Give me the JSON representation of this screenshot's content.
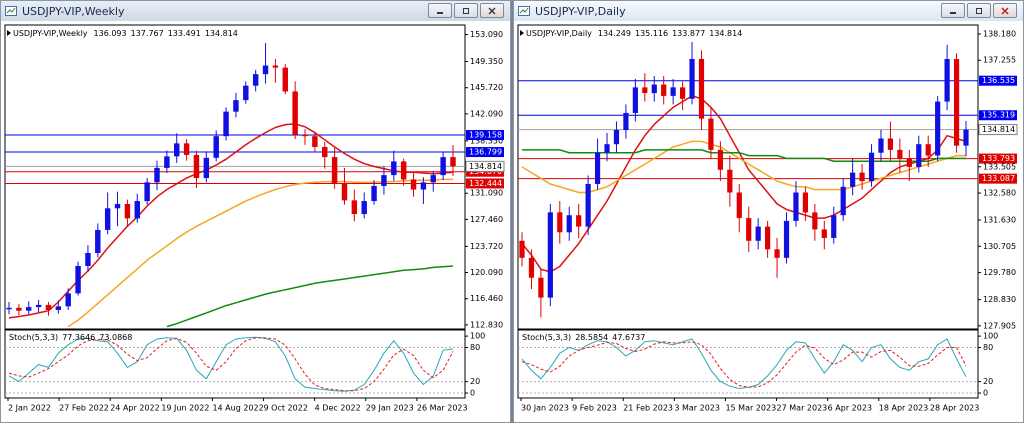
{
  "chart_data": [
    {
      "type": "candlestick",
      "title": "USDJPY-VIP,Weekly",
      "up_color": "#1010e0",
      "down_color": "#e00000",
      "open": [
        115.0,
        115.2,
        114.8,
        115.3,
        115.6,
        114.9,
        115.4,
        117.2,
        121.0,
        122.8,
        126.0,
        129.0,
        129.6,
        127.6,
        130.0,
        132.6,
        134.6,
        136.2,
        138.0,
        136.4,
        133.2,
        136.0,
        139.0,
        142.4,
        144.0,
        146.0,
        147.6,
        148.8,
        148.5,
        145.2,
        139.2,
        139.0,
        137.5,
        136.1,
        132.5,
        130.1,
        128.2,
        130.0,
        132.1,
        133.6,
        135.5,
        133.0,
        131.6,
        132.6,
        133.6,
        136.093
      ],
      "high": [
        116.0,
        115.7,
        116.1,
        116.3,
        116.0,
        116.2,
        117.9,
        121.6,
        123.9,
        126.9,
        131.2,
        131.3,
        130.2,
        131.0,
        133.2,
        135.6,
        137.0,
        139.4,
        138.6,
        137.0,
        136.9,
        139.8,
        143.0,
        145.0,
        146.6,
        148.2,
        151.9,
        149.7,
        149.0,
        146.6,
        140.0,
        139.6,
        138.2,
        137.4,
        134.6,
        131.6,
        131.2,
        132.9,
        134.8,
        137.0,
        135.9,
        134.0,
        133.3,
        134.2,
        136.9,
        137.767
      ],
      "low": [
        114.3,
        114.2,
        114.3,
        114.6,
        114.1,
        114.4,
        114.9,
        116.9,
        120.2,
        122.2,
        125.4,
        126.5,
        126.4,
        127.0,
        129.5,
        131.5,
        133.9,
        135.3,
        135.6,
        131.8,
        132.6,
        135.5,
        138.4,
        141.6,
        143.5,
        145.2,
        146.3,
        146.4,
        144.8,
        138.6,
        137.8,
        136.9,
        134.5,
        131.7,
        129.5,
        127.2,
        127.6,
        129.5,
        130.9,
        132.8,
        132.1,
        130.6,
        129.6,
        131.3,
        132.9,
        133.491
      ],
      "close": [
        115.2,
        114.8,
        115.3,
        115.6,
        114.9,
        115.4,
        117.2,
        121.0,
        122.8,
        126.0,
        129.0,
        129.6,
        127.6,
        130.0,
        132.6,
        134.6,
        136.2,
        138.0,
        136.4,
        133.2,
        136.0,
        139.0,
        142.4,
        144.0,
        146.0,
        147.6,
        148.8,
        148.5,
        145.2,
        139.2,
        139.0,
        137.5,
        136.1,
        132.5,
        130.1,
        128.2,
        130.0,
        132.1,
        133.6,
        135.5,
        133.0,
        131.6,
        132.6,
        133.6,
        136.093,
        134.814
      ],
      "moving_averages": [
        {
          "color": "#e01010",
          "values": [
            113.8,
            114.0,
            114.2,
            114.5,
            114.8,
            116.0,
            117.5,
            119.0,
            120.3,
            121.8,
            123.5,
            125.0,
            126.5,
            127.8,
            129.3,
            130.6,
            131.6,
            132.4,
            133.2,
            133.8,
            134.3,
            135.0,
            135.8,
            136.8,
            137.8,
            138.7,
            139.5,
            140.2,
            140.6,
            140.7,
            140.3,
            139.5,
            138.5,
            137.5,
            136.6,
            135.8,
            135.2,
            134.8,
            134.5,
            134.2,
            134.0,
            134.0,
            133.9,
            133.8,
            133.9,
            134.0
          ]
        },
        {
          "color": "#f5a623",
          "values": [
            null,
            null,
            null,
            null,
            null,
            null,
            112.6,
            113.5,
            114.6,
            115.8,
            117.0,
            118.2,
            119.4,
            120.6,
            121.8,
            122.8,
            123.8,
            124.8,
            125.7,
            126.5,
            127.2,
            127.9,
            128.6,
            129.3,
            130.0,
            130.6,
            131.1,
            131.6,
            132.0,
            132.3,
            132.5,
            132.6,
            132.7,
            132.7,
            132.7,
            132.6,
            132.6,
            132.6,
            132.7,
            132.7,
            132.8,
            132.9,
            132.9,
            132.9,
            133.0,
            133.0
          ]
        },
        {
          "color": "#128a12",
          "values": [
            null,
            null,
            null,
            null,
            null,
            null,
            null,
            null,
            null,
            null,
            null,
            null,
            null,
            null,
            null,
            null,
            112.6,
            113.0,
            113.5,
            114.0,
            114.5,
            115.0,
            115.5,
            115.9,
            116.3,
            116.7,
            117.1,
            117.4,
            117.7,
            118.0,
            118.3,
            118.6,
            118.8,
            119.0,
            119.2,
            119.4,
            119.6,
            119.8,
            120.0,
            120.2,
            120.4,
            120.5,
            120.6,
            120.8,
            120.9,
            121.0
          ]
        }
      ],
      "ylim": [
        112.4,
        154.0
      ],
      "yticks": [
        {
          "value": 153.09,
          "label": "153.090"
        },
        {
          "value": 149.35,
          "label": "149.350"
        },
        {
          "value": 145.72,
          "label": "145.720"
        },
        {
          "value": 142.09,
          "label": "142.090"
        },
        {
          "value": 138.35,
          "label": "138.350"
        },
        {
          "value": 131.09,
          "label": "131.090"
        },
        {
          "value": 127.46,
          "label": "127.460"
        },
        {
          "value": 123.72,
          "label": "123.720"
        },
        {
          "value": 120.09,
          "label": "120.090"
        },
        {
          "value": 116.46,
          "label": "116.460"
        },
        {
          "value": 112.83,
          "label": "112.830"
        }
      ],
      "levels": [
        {
          "value": 139.158,
          "color": "#0000f0"
        },
        {
          "value": 136.799,
          "color": "#0000f0"
        },
        {
          "value": 134.07,
          "label": "134.070",
          "color": "#e00000"
        },
        {
          "value": 132.444,
          "color": "#e00000"
        }
      ],
      "x_labels": [
        "2 Jan 2022",
        "27 Feb 2022",
        "24 Apr 2022",
        "19 Jun 2022",
        "14 Aug 2022",
        "9 Oct 2022",
        "4 Dec 2022",
        "29 Jan 2023",
        "26 Mar 2023"
      ],
      "stoch": {
        "label": "Stoch(5,3,3)",
        "ylim": [
          -7,
          109
        ],
        "yticks": [
          100,
          80,
          20,
          0
        ],
        "main": {
          "color": "#2aa7b8",
          "values": [
            30,
            20,
            35,
            50,
            45,
            70,
            85,
            95,
            96,
            92,
            90,
            70,
            45,
            55,
            85,
            95,
            97,
            96,
            75,
            40,
            25,
            55,
            85,
            95,
            97,
            98,
            96,
            90,
            65,
            25,
            10,
            8,
            6,
            4,
            3,
            5,
            15,
            40,
            70,
            92,
            70,
            35,
            15,
            30,
            75,
            77.3646
          ]
        },
        "signal": {
          "color": "#e02020",
          "values": [
            35,
            30,
            28,
            35,
            43,
            55,
            67,
            83,
            92,
            94,
            93,
            84,
            68,
            57,
            62,
            78,
            92,
            96,
            89,
            70,
            47,
            40,
            55,
            78,
            92,
            97,
            97,
            95,
            84,
            60,
            33,
            14,
            8,
            6,
            4,
            4,
            8,
            20,
            42,
            67,
            77,
            66,
            40,
            27,
            40,
            73.0868
          ]
        }
      }
    },
    {
      "type": "candlestick",
      "title": "USDJPY-VIP,Daily",
      "up_color": "#1010e0",
      "down_color": "#e00000",
      "open": [
        130.9,
        130.3,
        129.6,
        128.9,
        131.9,
        131.2,
        131.8,
        131.4,
        132.9,
        134.0,
        134.3,
        134.8,
        135.4,
        136.3,
        136.1,
        136.4,
        136.0,
        136.3,
        135.9,
        137.3,
        135.2,
        134.1,
        133.4,
        132.6,
        131.7,
        130.9,
        131.4,
        130.6,
        130.3,
        131.6,
        132.6,
        131.9,
        131.3,
        131.0,
        131.8,
        132.8,
        133.3,
        133.0,
        134.0,
        134.5,
        134.1,
        133.8,
        133.5,
        134.3,
        133.9,
        135.8,
        137.3,
        134.249
      ],
      "high": [
        131.2,
        130.6,
        129.9,
        132.2,
        132.3,
        132.1,
        132.2,
        133.2,
        134.5,
        134.7,
        135.1,
        135.7,
        136.6,
        136.8,
        136.7,
        136.7,
        136.6,
        136.5,
        137.9,
        137.6,
        135.6,
        134.4,
        133.9,
        132.9,
        132.1,
        131.7,
        131.6,
        131.0,
        131.9,
        133.0,
        132.8,
        132.2,
        131.6,
        132.1,
        133.1,
        133.8,
        133.6,
        134.3,
        134.8,
        135.1,
        134.5,
        134.1,
        134.6,
        134.6,
        136.0,
        137.8,
        137.5,
        135.116
      ],
      "low": [
        130.0,
        129.2,
        128.2,
        128.6,
        130.8,
        130.9,
        131.0,
        131.1,
        132.7,
        133.7,
        134.0,
        134.5,
        135.1,
        135.8,
        135.8,
        135.7,
        135.7,
        135.5,
        135.7,
        134.8,
        133.8,
        133.0,
        132.1,
        131.2,
        130.5,
        130.6,
        130.3,
        129.6,
        130.1,
        131.4,
        131.6,
        130.9,
        130.6,
        130.8,
        131.6,
        132.5,
        132.7,
        132.8,
        133.7,
        133.7,
        133.3,
        133.0,
        133.3,
        133.5,
        133.7,
        135.5,
        134.0,
        133.877
      ],
      "close": [
        130.3,
        129.6,
        128.9,
        131.9,
        131.2,
        131.8,
        131.4,
        132.9,
        134.0,
        134.3,
        134.8,
        135.4,
        136.3,
        136.1,
        136.4,
        136.0,
        136.3,
        135.9,
        137.3,
        135.2,
        134.1,
        133.4,
        132.6,
        131.7,
        130.9,
        131.4,
        130.6,
        130.3,
        131.6,
        132.6,
        131.9,
        131.3,
        131.0,
        131.8,
        132.8,
        133.3,
        133.0,
        134.0,
        134.5,
        134.1,
        133.8,
        133.5,
        134.3,
        133.9,
        135.8,
        137.3,
        134.249,
        134.814
      ],
      "moving_averages": [
        {
          "color": "#e01010",
          "values": [
            130.8,
            130.4,
            129.9,
            129.8,
            130.0,
            130.4,
            130.8,
            131.3,
            131.8,
            132.3,
            132.9,
            133.5,
            134.1,
            134.6,
            135.0,
            135.3,
            135.6,
            135.8,
            136.0,
            135.9,
            135.6,
            135.2,
            134.6,
            134.0,
            133.4,
            133.0,
            132.6,
            132.2,
            132.0,
            131.9,
            131.8,
            131.7,
            131.7,
            131.8,
            132.0,
            132.2,
            132.4,
            132.7,
            133.0,
            133.3,
            133.5,
            133.6,
            133.7,
            133.8,
            134.1,
            134.6,
            134.5,
            134.4
          ]
        },
        {
          "color": "#f5a623",
          "values": [
            133.5,
            133.3,
            133.1,
            132.9,
            132.8,
            132.7,
            132.6,
            132.6,
            132.7,
            132.8,
            133.0,
            133.2,
            133.4,
            133.6,
            133.8,
            134.0,
            134.2,
            134.3,
            134.4,
            134.4,
            134.3,
            134.2,
            134.0,
            133.8,
            133.6,
            133.4,
            133.2,
            133.0,
            132.9,
            132.8,
            132.8,
            132.7,
            132.7,
            132.7,
            132.7,
            132.8,
            132.9,
            133.0,
            133.1,
            133.2,
            133.3,
            133.4,
            133.5,
            133.6,
            133.7,
            133.8,
            133.9,
            133.9
          ]
        },
        {
          "color": "#128a12",
          "values": [
            134.1,
            134.1,
            134.1,
            134.1,
            134.1,
            134.0,
            134.0,
            134.0,
            134.0,
            134.0,
            134.0,
            134.0,
            134.0,
            134.1,
            134.1,
            134.1,
            134.1,
            134.1,
            134.1,
            134.1,
            134.0,
            134.0,
            134.0,
            134.0,
            133.9,
            133.9,
            133.9,
            133.9,
            133.8,
            133.8,
            133.8,
            133.8,
            133.8,
            133.7,
            133.7,
            133.7,
            133.7,
            133.7,
            133.7,
            133.7,
            133.7,
            133.7,
            133.7,
            133.7,
            133.8,
            133.8,
            133.8,
            133.8
          ]
        }
      ],
      "ylim": [
        127.83,
        138.39
      ],
      "yticks": [
        {
          "value": 138.18,
          "label": "138.180"
        },
        137.255,
        133.505,
        {
          "value": 132.58,
          "label": "132.580"
        },
        {
          "value": 131.63,
          "label": "131.630"
        },
        130.705,
        {
          "value": 129.78,
          "label": "129.780"
        },
        {
          "value": 128.83,
          "label": "128.830"
        },
        127.905
      ],
      "levels": [
        {
          "value": 136.535,
          "color": "#0000f0"
        },
        {
          "value": 135.319,
          "color": "#0000f0"
        },
        {
          "value": 133.793,
          "color": "#e00000"
        },
        {
          "value": 133.087,
          "color": "#e00000"
        }
      ],
      "x_labels": [
        "30 Jan 2023",
        "9 Feb 2023",
        "21 Feb 2023",
        "3 Mar 2023",
        "15 Mar 2023",
        "27 Mar 2023",
        "6 Apr 2023",
        "18 Apr 2023",
        "28 Apr 2023"
      ],
      "stoch": {
        "label": "Stoch(5,3,3)",
        "ylim": [
          -7,
          109
        ],
        "yticks": [
          100,
          80,
          20,
          0
        ],
        "main": {
          "color": "#2aa7b8",
          "values": [
            60,
            40,
            25,
            45,
            70,
            80,
            75,
            85,
            92,
            90,
            80,
            65,
            75,
            90,
            92,
            88,
            85,
            90,
            95,
            70,
            40,
            20,
            12,
            8,
            10,
            15,
            30,
            50,
            75,
            90,
            88,
            60,
            35,
            55,
            85,
            75,
            55,
            80,
            85,
            60,
            45,
            40,
            55,
            60,
            85,
            95,
            60,
            28.5854
          ]
        },
        "signal": {
          "color": "#e02020",
          "values": [
            55,
            50,
            42,
            37,
            47,
            65,
            75,
            80,
            84,
            89,
            87,
            78,
            73,
            77,
            86,
            90,
            88,
            88,
            90,
            85,
            68,
            43,
            24,
            13,
            10,
            11,
            18,
            32,
            52,
            72,
            84,
            79,
            61,
            50,
            58,
            72,
            72,
            63,
            73,
            75,
            63,
            48,
            47,
            52,
            67,
            80,
            80,
            47.6737
          ]
        }
      }
    }
  ]
}
